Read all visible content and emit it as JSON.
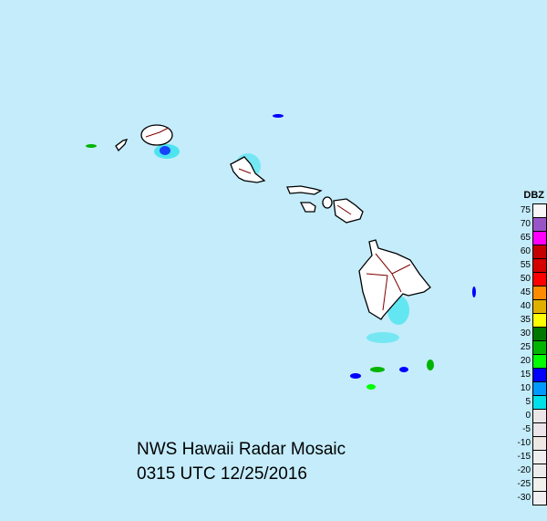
{
  "title": "NWS Hawaii Radar Mosaic",
  "timestamp": "0315 UTC 12/25/2016",
  "legend": {
    "unit": "DBZ",
    "entries": [
      {
        "label": "75",
        "color": "#f8f8f8"
      },
      {
        "label": "70",
        "color": "#9955c8"
      },
      {
        "label": "65",
        "color": "#ff00ff"
      },
      {
        "label": "60",
        "color": "#c40000"
      },
      {
        "label": "55",
        "color": "#d40000"
      },
      {
        "label": "50",
        "color": "#ff0000"
      },
      {
        "label": "45",
        "color": "#ff8c00"
      },
      {
        "label": "40",
        "color": "#e0b000"
      },
      {
        "label": "35",
        "color": "#ffff00"
      },
      {
        "label": "30",
        "color": "#007800"
      },
      {
        "label": "25",
        "color": "#00b400"
      },
      {
        "label": "20",
        "color": "#00ff00"
      },
      {
        "label": "15",
        "color": "#0000ff"
      },
      {
        "label": "10",
        "color": "#0099ff"
      },
      {
        "label": "5",
        "color": "#00e0e8"
      },
      {
        "label": "0",
        "color": "#eae6e8"
      },
      {
        "label": "-5",
        "color": "#ebe4ea"
      },
      {
        "label": "-10",
        "color": "#ede8e4"
      },
      {
        "label": "-15",
        "color": "#eeeeee"
      },
      {
        "label": "-20",
        "color": "#ececec"
      },
      {
        "label": "-25",
        "color": "#f0f0ec"
      },
      {
        "label": "-30",
        "color": "#f0eef0"
      }
    ]
  },
  "colors": {
    "ocean": "#c4ecfb",
    "land": "#ffffff",
    "coast": "#000000",
    "boundaries": "#800000"
  }
}
